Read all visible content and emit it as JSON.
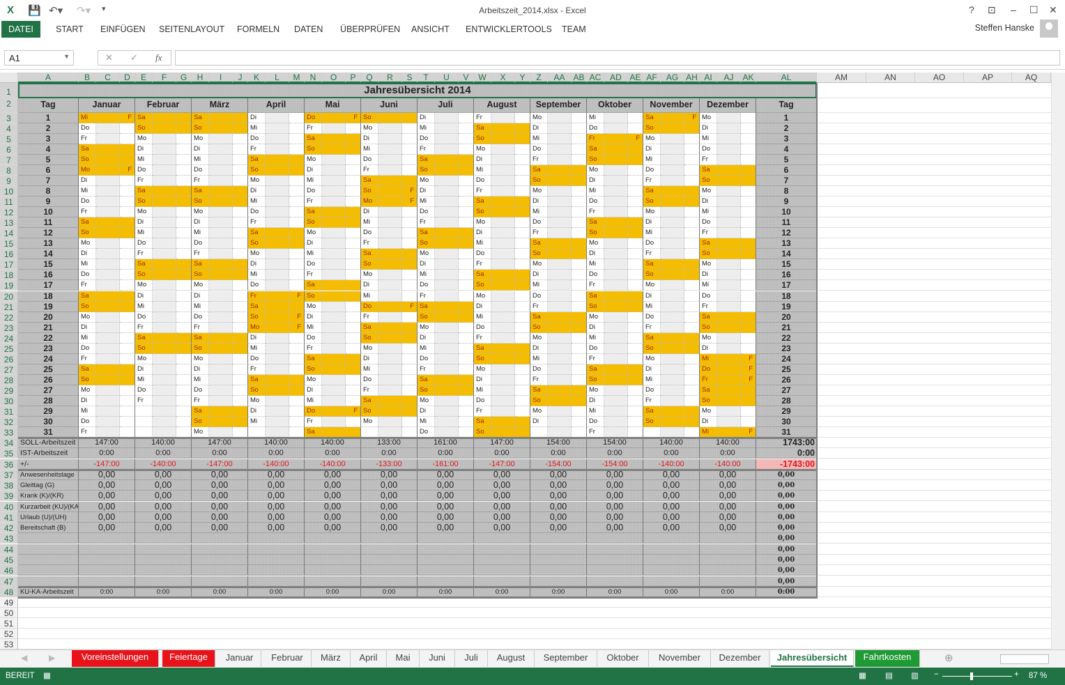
{
  "window": {
    "title": "Arbeitszeit_2014.xlsx - Excel",
    "user": "Steffen Hanske",
    "help": "?",
    "minimize": "–",
    "maximize": "☐",
    "close": "✕"
  },
  "ribbon": {
    "tabs": [
      "DATEI",
      "START",
      "EINFÜGEN",
      "SEITENLAYOUT",
      "FORMELN",
      "DATEN",
      "ÜBERPRÜFEN",
      "ANSICHT",
      "ENTWICKLERTOOLS",
      "TEAM"
    ],
    "active": "DATEI"
  },
  "formula_bar": {
    "name_box": "A1",
    "cancel": "✕",
    "enter": "✓",
    "fx": "fx",
    "value": ""
  },
  "columns": {
    "left": [
      "A",
      "B",
      "C",
      "D",
      "E",
      "F",
      "G",
      "H",
      "I",
      "J",
      "K",
      "L",
      "M",
      "N",
      "O",
      "P",
      "Q",
      "R",
      "S",
      "T",
      "U",
      "V",
      "W",
      "X",
      "Y",
      "Z",
      "AA",
      "AB",
      "AC",
      "AD",
      "AE",
      "AF",
      "AG",
      "AH",
      "AI",
      "AJ",
      "AK",
      "AL"
    ],
    "right": [
      "AM",
      "AN",
      "AO",
      "AP",
      "AQ"
    ]
  },
  "rows": [
    1,
    2,
    3,
    4,
    5,
    6,
    7,
    8,
    9,
    10,
    11,
    12,
    13,
    14,
    15,
    16,
    17,
    18,
    19,
    20,
    21,
    22,
    23,
    24,
    25,
    26,
    27,
    28,
    29,
    30,
    31,
    32,
    33,
    34,
    35,
    36,
    37,
    38,
    39,
    40,
    41,
    42,
    43,
    44,
    45,
    46,
    47,
    48,
    49,
    50,
    51,
    52,
    53
  ],
  "sheet": {
    "title": "Jahresübersicht 2014",
    "tag_header": "Tag",
    "holiday_mark": "F",
    "days": [
      1,
      2,
      3,
      4,
      5,
      6,
      7,
      8,
      9,
      10,
      11,
      12,
      13,
      14,
      15,
      16,
      17,
      18,
      19,
      20,
      21,
      22,
      23,
      24,
      25,
      26,
      27,
      28,
      29,
      30,
      31
    ],
    "summary_labels": [
      "SOLL-Arbeitszeit",
      "IST-Arbeitszeit",
      "+/-",
      "Anwesenheitstage",
      "Gleittag (G)",
      "Krank (K)/(KR)",
      "Kurzarbeit (KU)/(KA)",
      "Urlaub (U)/(UH)",
      "Bereitschaft (B)",
      "",
      "",
      "",
      "",
      "",
      "KU-KA-Arbeitszeit"
    ],
    "highlight_color": "#f5bd00",
    "months": [
      {
        "name": "Januar",
        "weekdays": [
          "Mi",
          "Do",
          "Fr",
          "Sa",
          "So",
          "Mo",
          "Di",
          "Mi",
          "Do",
          "Fr",
          "Sa",
          "So",
          "Mo",
          "Di",
          "Mi",
          "Do",
          "Fr",
          "Sa",
          "So",
          "Mo",
          "Di",
          "Mi",
          "Do",
          "Fr",
          "Sa",
          "So",
          "Mo",
          "Di",
          "Mi",
          "Do",
          "Fr"
        ],
        "holidays": [
          1,
          6
        ],
        "soll": "147:00",
        "ist": "0:00",
        "diff": "-147:00",
        "stats": [
          "0,00",
          "0,00",
          "0,00",
          "0,00",
          "0,00",
          "0,00"
        ],
        "kuka": "0:00"
      },
      {
        "name": "Februar",
        "weekdays": [
          "Sa",
          "So",
          "Mo",
          "Di",
          "Mi",
          "Do",
          "Fr",
          "Sa",
          "So",
          "Mo",
          "Di",
          "Mi",
          "Do",
          "Fr",
          "Sa",
          "So",
          "Mo",
          "Di",
          "Mi",
          "Do",
          "Fr",
          "Sa",
          "So",
          "Mo",
          "Di",
          "Mi",
          "Do",
          "Fr"
        ],
        "holidays": [],
        "soll": "140:00",
        "ist": "0:00",
        "diff": "-140:00",
        "stats": [
          "0,00",
          "0,00",
          "0,00",
          "0,00",
          "0,00",
          "0,00"
        ],
        "kuka": "0:00"
      },
      {
        "name": "März",
        "weekdays": [
          "Sa",
          "So",
          "Mo",
          "Di",
          "Mi",
          "Do",
          "Fr",
          "Sa",
          "So",
          "Mo",
          "Di",
          "Mi",
          "Do",
          "Fr",
          "Sa",
          "So",
          "Mo",
          "Di",
          "Mi",
          "Do",
          "Fr",
          "Sa",
          "So",
          "Mo",
          "Di",
          "Mi",
          "Do",
          "Fr",
          "Sa",
          "So",
          "Mo"
        ],
        "holidays": [],
        "soll": "147:00",
        "ist": "0:00",
        "diff": "-147:00",
        "stats": [
          "0,00",
          "0,00",
          "0,00",
          "0,00",
          "0,00",
          "0,00"
        ],
        "kuka": "0:00"
      },
      {
        "name": "April",
        "weekdays": [
          "Di",
          "Mi",
          "Do",
          "Fr",
          "Sa",
          "So",
          "Mo",
          "Di",
          "Mi",
          "Do",
          "Fr",
          "Sa",
          "So",
          "Mo",
          "Di",
          "Mi",
          "Do",
          "Fr",
          "Sa",
          "So",
          "Mo",
          "Di",
          "Mi",
          "Do",
          "Fr",
          "Sa",
          "So",
          "Mo",
          "Di",
          "Mi"
        ],
        "holidays": [
          18,
          20,
          21
        ],
        "soll": "140:00",
        "ist": "0:00",
        "diff": "-140:00",
        "stats": [
          "0,00",
          "0,00",
          "0,00",
          "0,00",
          "0,00",
          "0,00"
        ],
        "kuka": "0:00"
      },
      {
        "name": "Mai",
        "weekdays": [
          "Do",
          "Fr",
          "Sa",
          "So",
          "Mo",
          "Di",
          "Mi",
          "Do",
          "Fr",
          "Sa",
          "So",
          "Mo",
          "Di",
          "Mi",
          "Do",
          "Fr",
          "Sa",
          "So",
          "Mo",
          "Di",
          "Mi",
          "Do",
          "Fr",
          "Sa",
          "So",
          "Mo",
          "Di",
          "Mi",
          "Do",
          "Fr",
          "Sa"
        ],
        "holidays": [
          1,
          29
        ],
        "soll": "140:00",
        "ist": "0:00",
        "diff": "-140:00",
        "stats": [
          "0,00",
          "0,00",
          "0,00",
          "0,00",
          "0,00",
          "0,00"
        ],
        "kuka": "0:00"
      },
      {
        "name": "Juni",
        "weekdays": [
          "So",
          "Mo",
          "Di",
          "Mi",
          "Do",
          "Fr",
          "Sa",
          "So",
          "Mo",
          "Di",
          "Mi",
          "Do",
          "Fr",
          "Sa",
          "So",
          "Mo",
          "Di",
          "Mi",
          "Do",
          "Fr",
          "Sa",
          "So",
          "Mo",
          "Di",
          "Mi",
          "Do",
          "Fr",
          "Sa",
          "So",
          "Mo"
        ],
        "holidays": [
          8,
          9,
          19
        ],
        "soll": "133:00",
        "ist": "0:00",
        "diff": "-133:00",
        "stats": [
          "0,00",
          "0,00",
          "0,00",
          "0,00",
          "0,00",
          "0,00"
        ],
        "kuka": "0:00"
      },
      {
        "name": "Juli",
        "weekdays": [
          "Di",
          "Mi",
          "Do",
          "Fr",
          "Sa",
          "So",
          "Mo",
          "Di",
          "Mi",
          "Do",
          "Fr",
          "Sa",
          "So",
          "Mo",
          "Di",
          "Mi",
          "Do",
          "Fr",
          "Sa",
          "So",
          "Mo",
          "Di",
          "Mi",
          "Do",
          "Fr",
          "Sa",
          "So",
          "Mo",
          "Di",
          "Mi",
          "Do"
        ],
        "holidays": [],
        "soll": "161:00",
        "ist": "0:00",
        "diff": "-161:00",
        "stats": [
          "0,00",
          "0,00",
          "0,00",
          "0,00",
          "0,00",
          "0,00"
        ],
        "kuka": "0:00"
      },
      {
        "name": "August",
        "weekdays": [
          "Fr",
          "Sa",
          "So",
          "Mo",
          "Di",
          "Mi",
          "Do",
          "Fr",
          "Sa",
          "So",
          "Mo",
          "Di",
          "Mi",
          "Do",
          "Fr",
          "Sa",
          "So",
          "Mo",
          "Di",
          "Mi",
          "Do",
          "Fr",
          "Sa",
          "So",
          "Mo",
          "Di",
          "Mi",
          "Do",
          "Fr",
          "Sa",
          "So"
        ],
        "holidays": [],
        "soll": "147:00",
        "ist": "0:00",
        "diff": "-147:00",
        "stats": [
          "0,00",
          "0,00",
          "0,00",
          "0,00",
          "0,00",
          "0,00"
        ],
        "kuka": "0:00"
      },
      {
        "name": "September",
        "weekdays": [
          "Mo",
          "Di",
          "Mi",
          "Do",
          "Fr",
          "Sa",
          "So",
          "Mo",
          "Di",
          "Mi",
          "Do",
          "Fr",
          "Sa",
          "So",
          "Mo",
          "Di",
          "Mi",
          "Do",
          "Fr",
          "Sa",
          "So",
          "Mo",
          "Di",
          "Mi",
          "Do",
          "Fr",
          "Sa",
          "So",
          "Mo",
          "Di"
        ],
        "holidays": [],
        "soll": "154:00",
        "ist": "0:00",
        "diff": "-154:00",
        "stats": [
          "0,00",
          "0,00",
          "0,00",
          "0,00",
          "0,00",
          "0,00"
        ],
        "kuka": "0:00"
      },
      {
        "name": "Oktober",
        "weekdays": [
          "Mi",
          "Do",
          "Fr",
          "Sa",
          "So",
          "Mo",
          "Di",
          "Mi",
          "Do",
          "Fr",
          "Sa",
          "So",
          "Mo",
          "Di",
          "Mi",
          "Do",
          "Fr",
          "Sa",
          "So",
          "Mo",
          "Di",
          "Mi",
          "Do",
          "Fr",
          "Sa",
          "So",
          "Mo",
          "Di",
          "Mi",
          "Do",
          "Fr"
        ],
        "holidays": [
          3
        ],
        "soll": "154:00",
        "ist": "0:00",
        "diff": "-154:00",
        "stats": [
          "0,00",
          "0,00",
          "0,00",
          "0,00",
          "0,00",
          "0,00"
        ],
        "kuka": "0:00"
      },
      {
        "name": "November",
        "weekdays": [
          "Sa",
          "So",
          "Mo",
          "Di",
          "Mi",
          "Do",
          "Fr",
          "Sa",
          "So",
          "Mo",
          "Di",
          "Mi",
          "Do",
          "Fr",
          "Sa",
          "So",
          "Mo",
          "Di",
          "Mi",
          "Do",
          "Fr",
          "Sa",
          "So",
          "Mo",
          "Di",
          "Mi",
          "Do",
          "Fr",
          "Sa",
          "So"
        ],
        "holidays": [
          1
        ],
        "soll": "140:00",
        "ist": "0:00",
        "diff": "-140:00",
        "stats": [
          "0,00",
          "0,00",
          "0,00",
          "0,00",
          "0,00",
          "0,00"
        ],
        "kuka": "0:00"
      },
      {
        "name": "Dezember",
        "weekdays": [
          "Mo",
          "Di",
          "Mi",
          "Do",
          "Fr",
          "Sa",
          "So",
          "Mo",
          "Di",
          "Mi",
          "Do",
          "Fr",
          "Sa",
          "So",
          "Mo",
          "Di",
          "Mi",
          "Do",
          "Fr",
          "Sa",
          "So",
          "Mo",
          "Di",
          "Mi",
          "Do",
          "Fr",
          "Sa",
          "So",
          "Mo",
          "Di",
          "Mi"
        ],
        "holidays": [
          24,
          25,
          26,
          31
        ],
        "soll": "140:00",
        "ist": "0:00",
        "diff": "-140:00",
        "stats": [
          "0,00",
          "0,00",
          "0,00",
          "0,00",
          "0,00",
          "0,00"
        ],
        "kuka": "0:00"
      }
    ],
    "totals": {
      "soll": "1743:00",
      "ist": "0:00",
      "diff": "-1743:00",
      "stats": [
        "0,00",
        "0,00",
        "0,00",
        "0,00",
        "0,00",
        "0,00",
        "0,00",
        "0,00",
        "0,00",
        "0,00",
        "0,00"
      ],
      "kuka": "0:00"
    }
  },
  "sheet_tabs": [
    {
      "label": "Voreinstellungen",
      "style": "red"
    },
    {
      "label": "Feiertage",
      "style": "red"
    },
    {
      "label": "Januar"
    },
    {
      "label": "Februar"
    },
    {
      "label": "März"
    },
    {
      "label": "April"
    },
    {
      "label": "Mai"
    },
    {
      "label": "Juni"
    },
    {
      "label": "Juli"
    },
    {
      "label": "August"
    },
    {
      "label": "September"
    },
    {
      "label": "Oktober"
    },
    {
      "label": "November"
    },
    {
      "label": "Dezember"
    },
    {
      "label": "Jahresübersicht",
      "style": "active"
    },
    {
      "label": "Fahrtkosten",
      "style": "green"
    }
  ],
  "status": {
    "mode": "BEREIT",
    "zoom": "87 %"
  },
  "colors": {
    "excel_green": "#217346",
    "tab_red": "#e8121b",
    "tab_green": "#1f9a34",
    "negative": "#e2161c"
  }
}
